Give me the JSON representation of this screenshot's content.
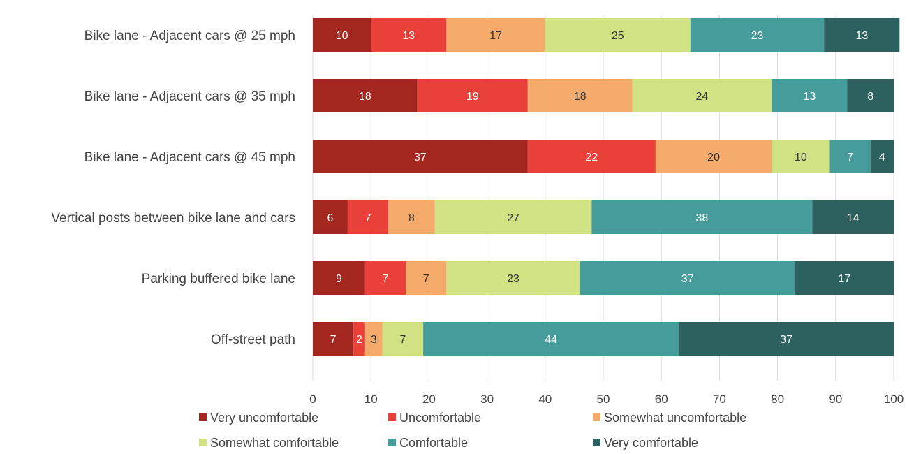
{
  "chart_data": {
    "type": "bar",
    "orientation": "horizontal",
    "stacked": true,
    "categories": [
      "Bike lane - Adjacent cars @ 25 mph",
      "Bike lane - Adjacent cars @ 35 mph",
      "Bike lane - Adjacent cars @ 45 mph",
      "Vertical posts between bike lane and cars",
      "Parking buffered bike lane",
      "Off-street path"
    ],
    "series": [
      {
        "name": "Very uncomfortable",
        "color": "#a3271f",
        "values": [
          10,
          18,
          37,
          6,
          9,
          7
        ]
      },
      {
        "name": "Uncomfortable",
        "color": "#e9413a",
        "values": [
          13,
          19,
          22,
          7,
          7,
          2
        ]
      },
      {
        "name": "Somewhat uncomfortable",
        "color": "#f3aa6b",
        "values": [
          17,
          18,
          20,
          8,
          7,
          3
        ]
      },
      {
        "name": "Somewhat comfortable",
        "color": "#d1e284",
        "values": [
          25,
          24,
          10,
          27,
          23,
          7
        ]
      },
      {
        "name": "Comfortable",
        "color": "#469b9b",
        "values": [
          23,
          13,
          7,
          38,
          37,
          44
        ]
      },
      {
        "name": "Very comfortable",
        "color": "#2c615f",
        "values": [
          13,
          8,
          4,
          14,
          17,
          37
        ]
      }
    ],
    "xlim": [
      0,
      100
    ],
    "xticks": [
      "0",
      "10",
      "20",
      "30",
      "40",
      "50",
      "60",
      "70",
      "80",
      "90",
      "100"
    ],
    "grid": true,
    "legend_position": "bottom",
    "title": "",
    "xlabel": "",
    "ylabel": ""
  }
}
